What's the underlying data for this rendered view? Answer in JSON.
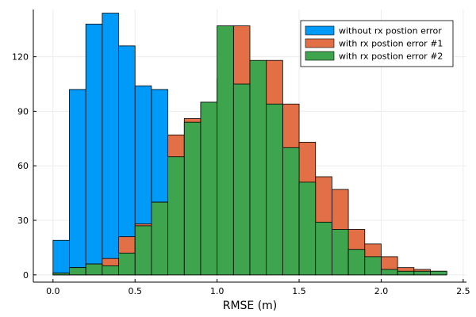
{
  "chart_data": {
    "type": "bar",
    "xlabel": "RMSE (m)",
    "ylabel": "",
    "xlim": [
      -0.12,
      2.52
    ],
    "ylim": [
      -4,
      146
    ],
    "xticks": [
      0.0,
      0.5,
      1.0,
      1.5,
      2.0,
      2.5
    ],
    "xtick_labels": [
      "0.0",
      "0.5",
      "1.0",
      "1.5",
      "2.0",
      "2.5"
    ],
    "yticks": [
      0,
      30,
      60,
      90,
      120
    ],
    "ytick_labels": [
      "0",
      "30",
      "60",
      "90",
      "120"
    ],
    "grid": true,
    "legend_position": "top-right",
    "bin_edges": [
      0.0,
      0.1,
      0.2,
      0.3,
      0.4,
      0.5,
      0.6,
      0.7,
      0.8,
      0.9,
      1.0,
      1.1,
      1.2,
      1.3,
      1.4,
      1.5,
      1.6,
      1.7,
      1.8,
      1.9,
      2.0,
      2.1,
      2.2,
      2.3,
      2.4
    ],
    "series": [
      {
        "name": "without rx postion error",
        "color": "#009af9",
        "values": [
          19,
          102,
          138,
          144,
          126,
          104,
          102,
          0,
          0,
          0,
          0,
          0,
          0,
          0,
          0,
          0,
          0,
          0,
          0,
          0,
          0,
          0,
          0,
          0
        ]
      },
      {
        "name": "with rx postion error #1",
        "color": "#e26f46",
        "values": [
          1,
          4,
          6,
          9,
          21,
          28,
          40,
          77,
          86,
          95,
          108,
          137,
          107,
          118,
          94,
          73,
          54,
          47,
          25,
          17,
          10,
          4,
          3,
          2
        ]
      },
      {
        "name": "with rx postion error #2",
        "color": "#3ea44e",
        "values": [
          1,
          4,
          6,
          5,
          12,
          27,
          40,
          65,
          84,
          95,
          137,
          105,
          118,
          94,
          70,
          51,
          29,
          25,
          14,
          10,
          3,
          2,
          2,
          2
        ]
      }
    ]
  }
}
